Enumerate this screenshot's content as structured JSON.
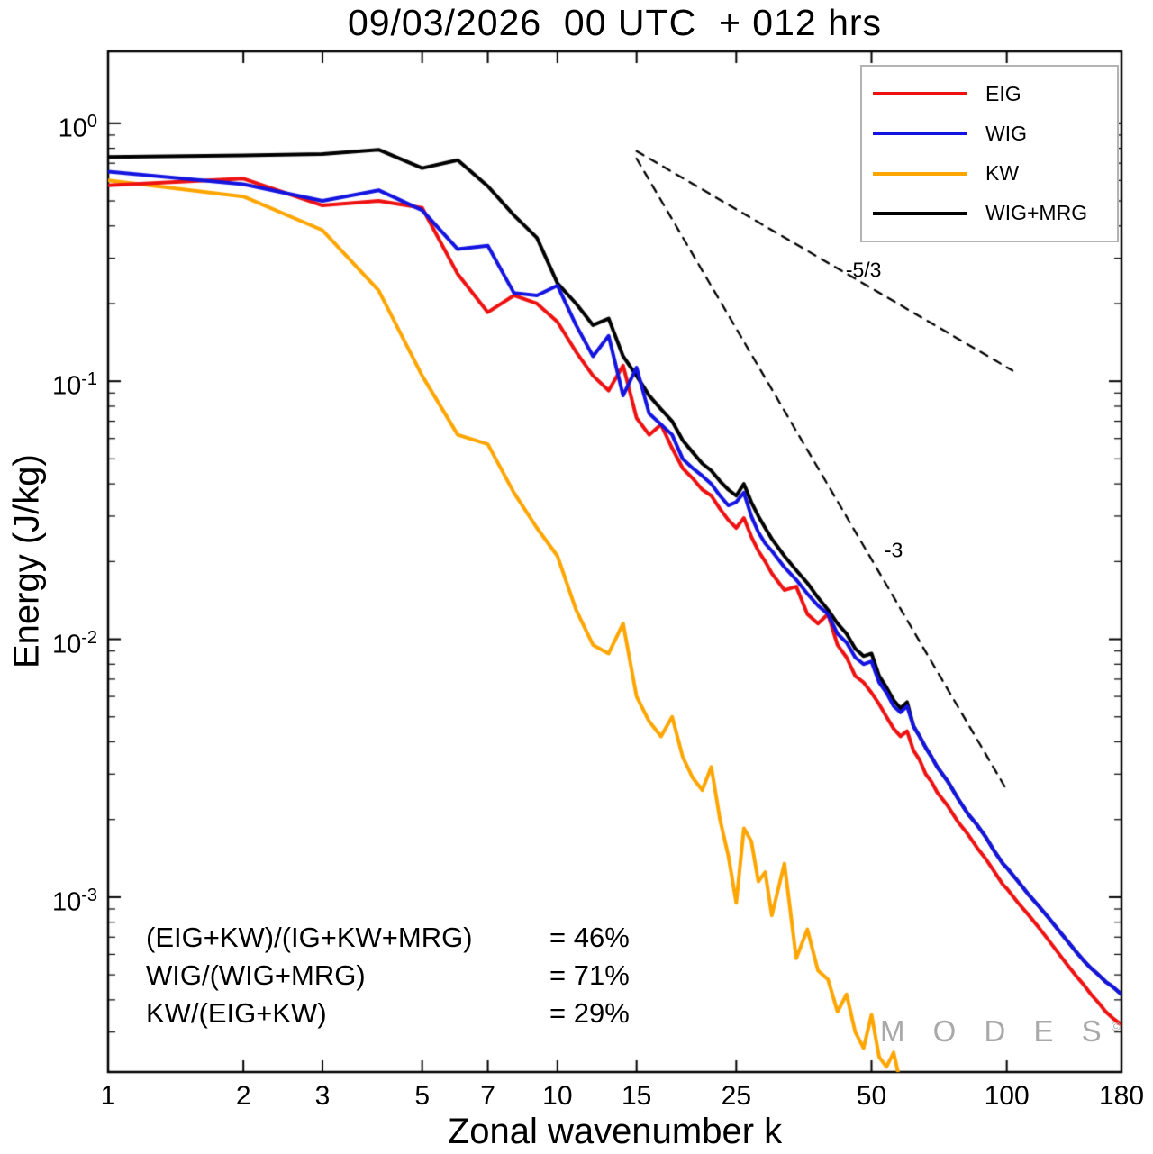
{
  "chart_data": {
    "type": "line",
    "title": "09/03/2026  00 UTC  + 012 hrs",
    "xlabel": "Zonal wavenumber k",
    "ylabel": "Energy (J/kg)",
    "x_scale": "log",
    "y_scale": "log",
    "xlim": [
      1,
      180
    ],
    "ylim": [
      0.00021,
      1.9
    ],
    "x_ticks": [
      1,
      2,
      3,
      5,
      7,
      10,
      15,
      25,
      50,
      100,
      180
    ],
    "y_tick_exponents": [
      0,
      -1,
      -2,
      -3
    ],
    "legend_position": "top-right",
    "grid": false,
    "draw_order": [
      3,
      2,
      0,
      1
    ],
    "series": [
      {
        "name": "EIG",
        "color": "#ee1111",
        "x": [
          1,
          2,
          3,
          4,
          5,
          6,
          7,
          8,
          9,
          10,
          11,
          12,
          13,
          14,
          15,
          16,
          17,
          18,
          19,
          20,
          21,
          22,
          23,
          24,
          25,
          26,
          27,
          28,
          29,
          30,
          32,
          34,
          36,
          38,
          40,
          42,
          44,
          46,
          48,
          50,
          52,
          54,
          56,
          58,
          60,
          62,
          64,
          66,
          68,
          70,
          74,
          78,
          82,
          86,
          90,
          94,
          98,
          100,
          106,
          112,
          118,
          124,
          130,
          136,
          142,
          148,
          154,
          160,
          166,
          172,
          180
        ],
        "y": [
          0.575,
          0.61,
          0.48,
          0.5,
          0.47,
          0.26,
          0.185,
          0.215,
          0.2,
          0.17,
          0.13,
          0.105,
          0.092,
          0.115,
          0.072,
          0.062,
          0.068,
          0.055,
          0.046,
          0.042,
          0.038,
          0.036,
          0.032,
          0.029,
          0.027,
          0.0295,
          0.025,
          0.022,
          0.02,
          0.018,
          0.0155,
          0.016,
          0.0125,
          0.0115,
          0.0125,
          0.0095,
          0.0085,
          0.0072,
          0.0068,
          0.0062,
          0.0056,
          0.005,
          0.0045,
          0.0042,
          0.0044,
          0.0037,
          0.0034,
          0.003,
          0.0028,
          0.00255,
          0.00225,
          0.00195,
          0.00175,
          0.00155,
          0.0014,
          0.00125,
          0.00112,
          0.00108,
          0.00095,
          0.00085,
          0.00076,
          0.00068,
          0.00061,
          0.00055,
          0.0005,
          0.00046,
          0.00042,
          0.00039,
          0.00036,
          0.00034,
          0.00032
        ]
      },
      {
        "name": "WIG",
        "color": "#1414e0",
        "x": [
          1,
          2,
          3,
          4,
          5,
          6,
          7,
          8,
          9,
          10,
          11,
          12,
          13,
          14,
          15,
          16,
          17,
          18,
          19,
          20,
          21,
          22,
          23,
          24,
          25,
          26,
          27,
          28,
          29,
          30,
          32,
          34,
          36,
          38,
          40,
          42,
          44,
          46,
          48,
          50,
          52,
          54,
          56,
          58,
          60,
          62,
          64,
          66,
          68,
          70,
          74,
          78,
          82,
          86,
          90,
          94,
          98,
          100,
          106,
          112,
          118,
          124,
          130,
          136,
          142,
          148,
          154,
          160,
          166,
          172,
          180
        ],
        "y": [
          0.65,
          0.58,
          0.5,
          0.55,
          0.46,
          0.325,
          0.335,
          0.22,
          0.215,
          0.235,
          0.165,
          0.125,
          0.15,
          0.088,
          0.113,
          0.075,
          0.068,
          0.062,
          0.05,
          0.046,
          0.043,
          0.04,
          0.036,
          0.033,
          0.034,
          0.037,
          0.03,
          0.026,
          0.0235,
          0.022,
          0.019,
          0.017,
          0.015,
          0.0135,
          0.0125,
          0.0105,
          0.0097,
          0.0085,
          0.008,
          0.0082,
          0.0068,
          0.0062,
          0.0055,
          0.0052,
          0.0055,
          0.0046,
          0.0042,
          0.0038,
          0.0035,
          0.0032,
          0.0028,
          0.0024,
          0.0021,
          0.0019,
          0.0017,
          0.0015,
          0.00135,
          0.0013,
          0.00115,
          0.00102,
          0.00092,
          0.00083,
          0.00075,
          0.00068,
          0.00062,
          0.00057,
          0.00053,
          0.0005,
          0.00047,
          0.00045,
          0.00042
        ]
      },
      {
        "name": "KW",
        "color": "#ffa500",
        "x": [
          1,
          2,
          3,
          4,
          5,
          6,
          7,
          8,
          9,
          10,
          11,
          12,
          13,
          14,
          15,
          16,
          17,
          18,
          19,
          20,
          21,
          22,
          23,
          24,
          25,
          26,
          27,
          28,
          29,
          30,
          32,
          34,
          36,
          38,
          40,
          42,
          44,
          46,
          48,
          50,
          52,
          54,
          56,
          58
        ],
        "y": [
          0.6,
          0.52,
          0.385,
          0.225,
          0.105,
          0.062,
          0.057,
          0.037,
          0.027,
          0.021,
          0.013,
          0.0095,
          0.0088,
          0.0115,
          0.006,
          0.0048,
          0.0042,
          0.005,
          0.0035,
          0.0029,
          0.0026,
          0.0032,
          0.002,
          0.00145,
          0.00095,
          0.00185,
          0.00165,
          0.00115,
          0.00125,
          0.00085,
          0.00135,
          0.00058,
          0.00075,
          0.00052,
          0.00048,
          0.00036,
          0.00042,
          0.0003,
          0.00026,
          0.00035,
          0.00024,
          0.00022,
          0.00025,
          0.00019
        ]
      },
      {
        "name": "WIG+MRG",
        "color": "#000000",
        "x": [
          1,
          2,
          3,
          4,
          5,
          6,
          7,
          8,
          9,
          10,
          11,
          12,
          13,
          14,
          15,
          16,
          17,
          18,
          19,
          20,
          21,
          22,
          23,
          24,
          25,
          26,
          27,
          28,
          29,
          30,
          32,
          34,
          36,
          38,
          40,
          42,
          44,
          46,
          48,
          50,
          52,
          54,
          56,
          58,
          60,
          62,
          64,
          66,
          68,
          70,
          74,
          78,
          82,
          86,
          90,
          94,
          98,
          100,
          106,
          112,
          118,
          124,
          130,
          136,
          142,
          148,
          154,
          160,
          166,
          172,
          180
        ],
        "y": [
          0.74,
          0.75,
          0.76,
          0.79,
          0.67,
          0.72,
          0.57,
          0.44,
          0.36,
          0.24,
          0.2,
          0.165,
          0.175,
          0.125,
          0.105,
          0.088,
          0.078,
          0.07,
          0.059,
          0.053,
          0.048,
          0.045,
          0.041,
          0.038,
          0.036,
          0.04,
          0.034,
          0.03,
          0.027,
          0.0245,
          0.021,
          0.0185,
          0.0165,
          0.0145,
          0.013,
          0.0115,
          0.0105,
          0.0092,
          0.0086,
          0.0088,
          0.0072,
          0.0065,
          0.0058,
          0.0054,
          0.0057,
          0.0046,
          0.0042,
          0.0038,
          0.0035,
          0.0032,
          0.0028,
          0.0024,
          0.0021,
          0.0019,
          0.0017,
          0.0015,
          0.00135,
          0.0013,
          0.00115,
          0.00102,
          0.00092,
          0.00083,
          0.00075,
          0.00068,
          0.00062,
          0.00057,
          0.00053,
          0.0005,
          0.00047,
          0.00045,
          0.00042
        ]
      }
    ],
    "reference_lines": [
      {
        "label": "-5/3",
        "x1": 15,
        "y1": 0.78,
        "x2": 103,
        "y2": 0.11,
        "label_x": 48,
        "label_y": 0.27
      },
      {
        "label": "-3",
        "x1": 15,
        "y1": 0.73,
        "x2": 100,
        "y2": 0.0026,
        "label_x": 56,
        "label_y": 0.022
      }
    ]
  },
  "annotations": {
    "ratios": [
      {
        "lhs": "(EIG+KW)/(IG+KW+MRG)",
        "rhs": "= 46%"
      },
      {
        "lhs": "WIG/(WIG+MRG)",
        "rhs": "= 71%"
      },
      {
        "lhs": "KW/(EIG+KW)",
        "rhs": "= 29%"
      }
    ],
    "watermark": "M O D E S",
    "watermark_sup": "©"
  },
  "colors": {
    "eig": "#ee1111",
    "wig": "#1414e0",
    "kw": "#ffa500",
    "wig_mrg": "#000000",
    "watermark": "#a9a9a9",
    "legend_border": "#b3b3b3"
  }
}
